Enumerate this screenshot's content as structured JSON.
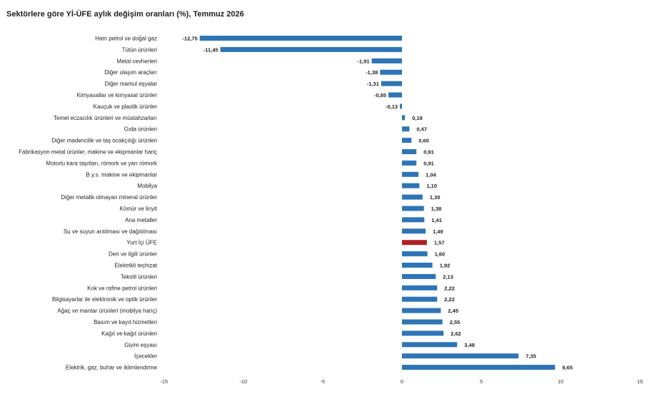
{
  "chart_data": {
    "type": "bar",
    "orientation": "horizontal",
    "title": "Sektörlere göre Yİ-ÜFE aylık değişim oranları (%), Temmuz 2026",
    "xlabel": "",
    "ylabel": "",
    "xlim": [
      -15,
      15
    ],
    "xticks": [
      -15,
      -10,
      -5,
      0,
      5,
      10,
      15
    ],
    "grid": false,
    "legend": "none",
    "colors": {
      "default": "#2e75b6",
      "highlight": "#b11f24"
    },
    "highlight_category": "Yurt İçi ÜFE",
    "categories": [
      "Ham petrol ve doğal gaz",
      "Tütün ürünleri",
      "Metal cevherleri",
      "Diğer ulaşım araçları",
      "Diğer mamul eşyalar",
      "Kimyasallar ve kimyasal ürünler",
      "Kauçuk ve plastik ürünler",
      "Temel eczacılık ürünleri ve müstahzarları",
      "Gıda ürünleri",
      "Diğer madencilik ve taş ocakçılığı ürünleri",
      "Fabrikasyon metal ürünler, makine ve ekipmanlar hariç",
      "Motorlu kara taşıtları, römork ve yarı römork",
      "B.y.s. makine ve ekipmanlar",
      "Mobilya",
      "Diğer metalik olmayan mineral ürünler",
      "Kömür ve linyit",
      "Ana metaller",
      "Su ve suyun arıtılması ve dağıtılması",
      "Yurt İçi ÜFE",
      "Deri ve ilgili ürünler",
      "Elektrikli teçhizat",
      "Tekstil ürünleri",
      "Kok ve rafine petrol ürünleri",
      "Bilgisayarlar ile elektronik ve optik ürünler",
      "Ağaç ve mantar ürünleri (mobilya hariç)",
      "Basım ve kayıt hizmetleri",
      "Kağıt ve kağıt ürünleri",
      "Giyim eşyası",
      "İçecekler",
      "Elektrik, gaz, buhar ve iklimlendirme"
    ],
    "values": [
      -12.75,
      -11.45,
      -1.91,
      -1.38,
      -1.31,
      -0.85,
      -0.13,
      0.19,
      0.47,
      0.6,
      0.91,
      0.91,
      1.04,
      1.1,
      1.3,
      1.38,
      1.41,
      1.49,
      1.57,
      1.6,
      1.92,
      2.13,
      2.22,
      2.22,
      2.45,
      2.55,
      2.62,
      3.48,
      7.35,
      9.65
    ],
    "value_labels": [
      "-12,75",
      "-11,45",
      "-1,91",
      "-1,38",
      "-1,31",
      "-0,85",
      "-0,13",
      "0,19",
      "0,47",
      "0,60",
      "0,91",
      "0,91",
      "1,04",
      "1,10",
      "1,30",
      "1,38",
      "1,41",
      "1,49",
      "1,57",
      "1,60",
      "1,92",
      "2,13",
      "2,22",
      "2,22",
      "2,45",
      "2,55",
      "2,62",
      "3,48",
      "7,35",
      "9,65"
    ]
  }
}
